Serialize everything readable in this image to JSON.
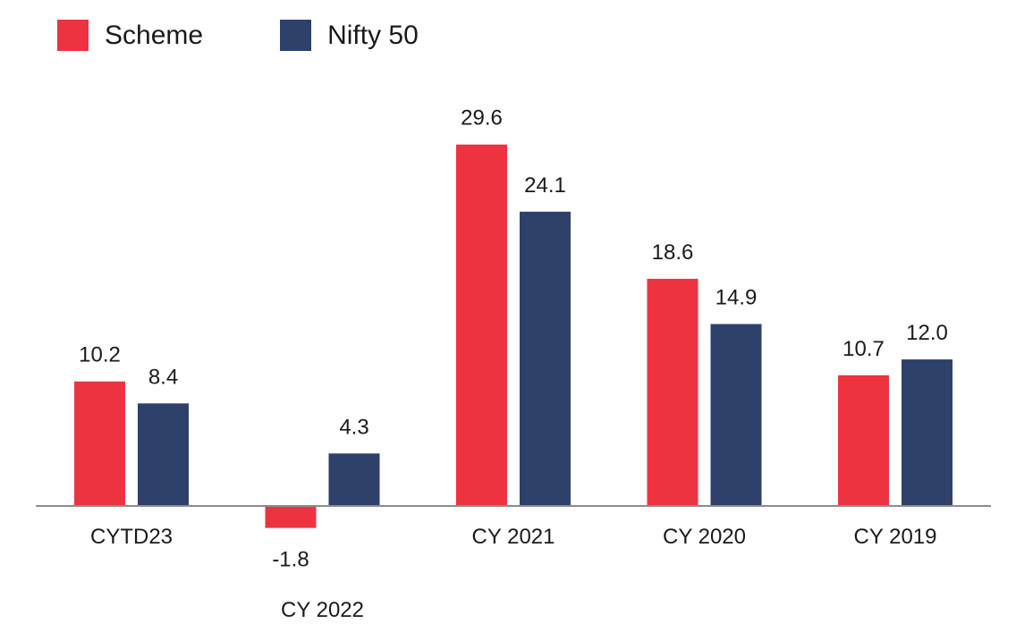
{
  "colors": {
    "scheme": "#EE3340",
    "nifty": "#2E416A",
    "axis": "#8C8C8C",
    "text": "#1a1a1a"
  },
  "legend": {
    "items": [
      {
        "label": "Scheme",
        "color": "#EE3340"
      },
      {
        "label": "Nifty 50",
        "color": "#2E416A"
      }
    ]
  },
  "chart_data": {
    "type": "bar",
    "categories": [
      "CYTD23",
      "CY 2022",
      "CY 2021",
      "CY 2020",
      "CY 2019"
    ],
    "series": [
      {
        "name": "Scheme",
        "values": [
          10.2,
          -1.8,
          29.6,
          18.6,
          10.7
        ],
        "labels": [
          "10.2",
          "-1.8",
          "29.6",
          "18.6",
          "10.7"
        ]
      },
      {
        "name": "Nifty 50",
        "values": [
          8.4,
          4.3,
          24.1,
          14.9,
          12.0
        ],
        "labels": [
          "8.4",
          "4.3",
          "24.1",
          "14.9",
          "12.0"
        ]
      }
    ],
    "title": "",
    "xlabel": "",
    "ylabel": "",
    "ylim": [
      -1.8,
      29.6
    ],
    "grid": false,
    "legend_position": "top-left",
    "data_labels": true
  }
}
